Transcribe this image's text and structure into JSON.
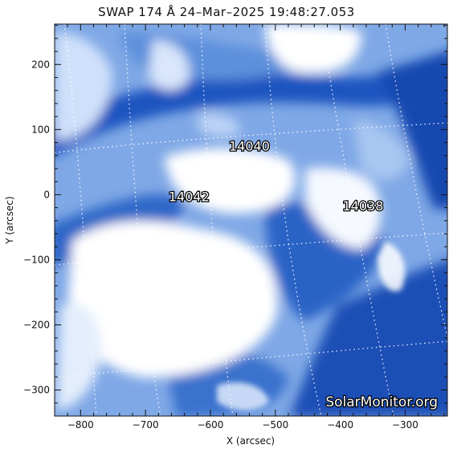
{
  "title": "SWAP 174 Å 24–Mar–2025 19:48:27.053",
  "axes": {
    "xlabel": "X (arcsec)",
    "ylabel": "Y (arcsec)",
    "xticks": [
      -800,
      -700,
      -600,
      -500,
      -400,
      -300
    ],
    "xtick_labels": [
      "−800",
      "−700",
      "−600",
      "−500",
      "−400",
      "−300"
    ],
    "yticks": [
      -300,
      -200,
      -100,
      0,
      100,
      200
    ],
    "ytick_labels": [
      "−300",
      "−200",
      "−100",
      "0",
      "100",
      "200"
    ],
    "xlim": [
      -840,
      -235
    ],
    "ylim": [
      -340,
      262
    ]
  },
  "active_regions": [
    {
      "label": "14040",
      "x": -540,
      "y": 68
    },
    {
      "label": "14042",
      "x": -633,
      "y": -10
    },
    {
      "label": "14038",
      "x": -365,
      "y": -24
    }
  ],
  "watermark": "SolarMonitor.org",
  "colors": {
    "light": "#f4f8ff",
    "mid": "#4f86d6",
    "dark": "#0d3fa4",
    "grid": "#e8eefc"
  }
}
